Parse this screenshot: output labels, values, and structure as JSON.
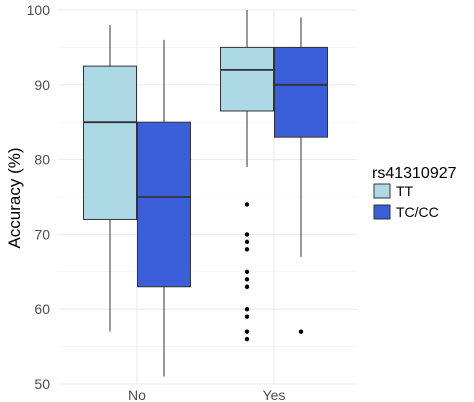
{
  "chart_data": {
    "type": "boxplot",
    "ylabel": "Accuracy (%)",
    "xlabel": "",
    "ylim": [
      50,
      100
    ],
    "yticks": [
      50,
      60,
      70,
      80,
      90,
      100
    ],
    "categories": [
      "No",
      "Yes"
    ],
    "grid": true,
    "legend": {
      "title": "rs41310927",
      "placement": "right",
      "entries": [
        {
          "label": "TT",
          "color": "#add8e6"
        },
        {
          "label": "TC/CC",
          "color": "#3a5fd8"
        }
      ]
    },
    "series": [
      {
        "name": "TT",
        "color": "#add8e6",
        "boxes": [
          {
            "category": "No",
            "min": 57,
            "q1": 72,
            "median": 85,
            "q3": 92.5,
            "max": 98,
            "outliers": []
          },
          {
            "category": "Yes",
            "min": 79,
            "q1": 86.5,
            "median": 92,
            "q3": 95,
            "max": 100,
            "outliers": [
              74,
              70,
              69,
              68,
              65,
              64,
              63,
              60,
              59,
              57,
              56
            ]
          }
        ]
      },
      {
        "name": "TC/CC",
        "color": "#3a5fd8",
        "boxes": [
          {
            "category": "No",
            "min": 51,
            "q1": 63,
            "median": 75,
            "q3": 85,
            "max": 96,
            "outliers": []
          },
          {
            "category": "Yes",
            "min": 67,
            "q1": 83,
            "median": 90,
            "q3": 95,
            "max": 99,
            "outliers": [
              57
            ]
          }
        ]
      }
    ]
  }
}
